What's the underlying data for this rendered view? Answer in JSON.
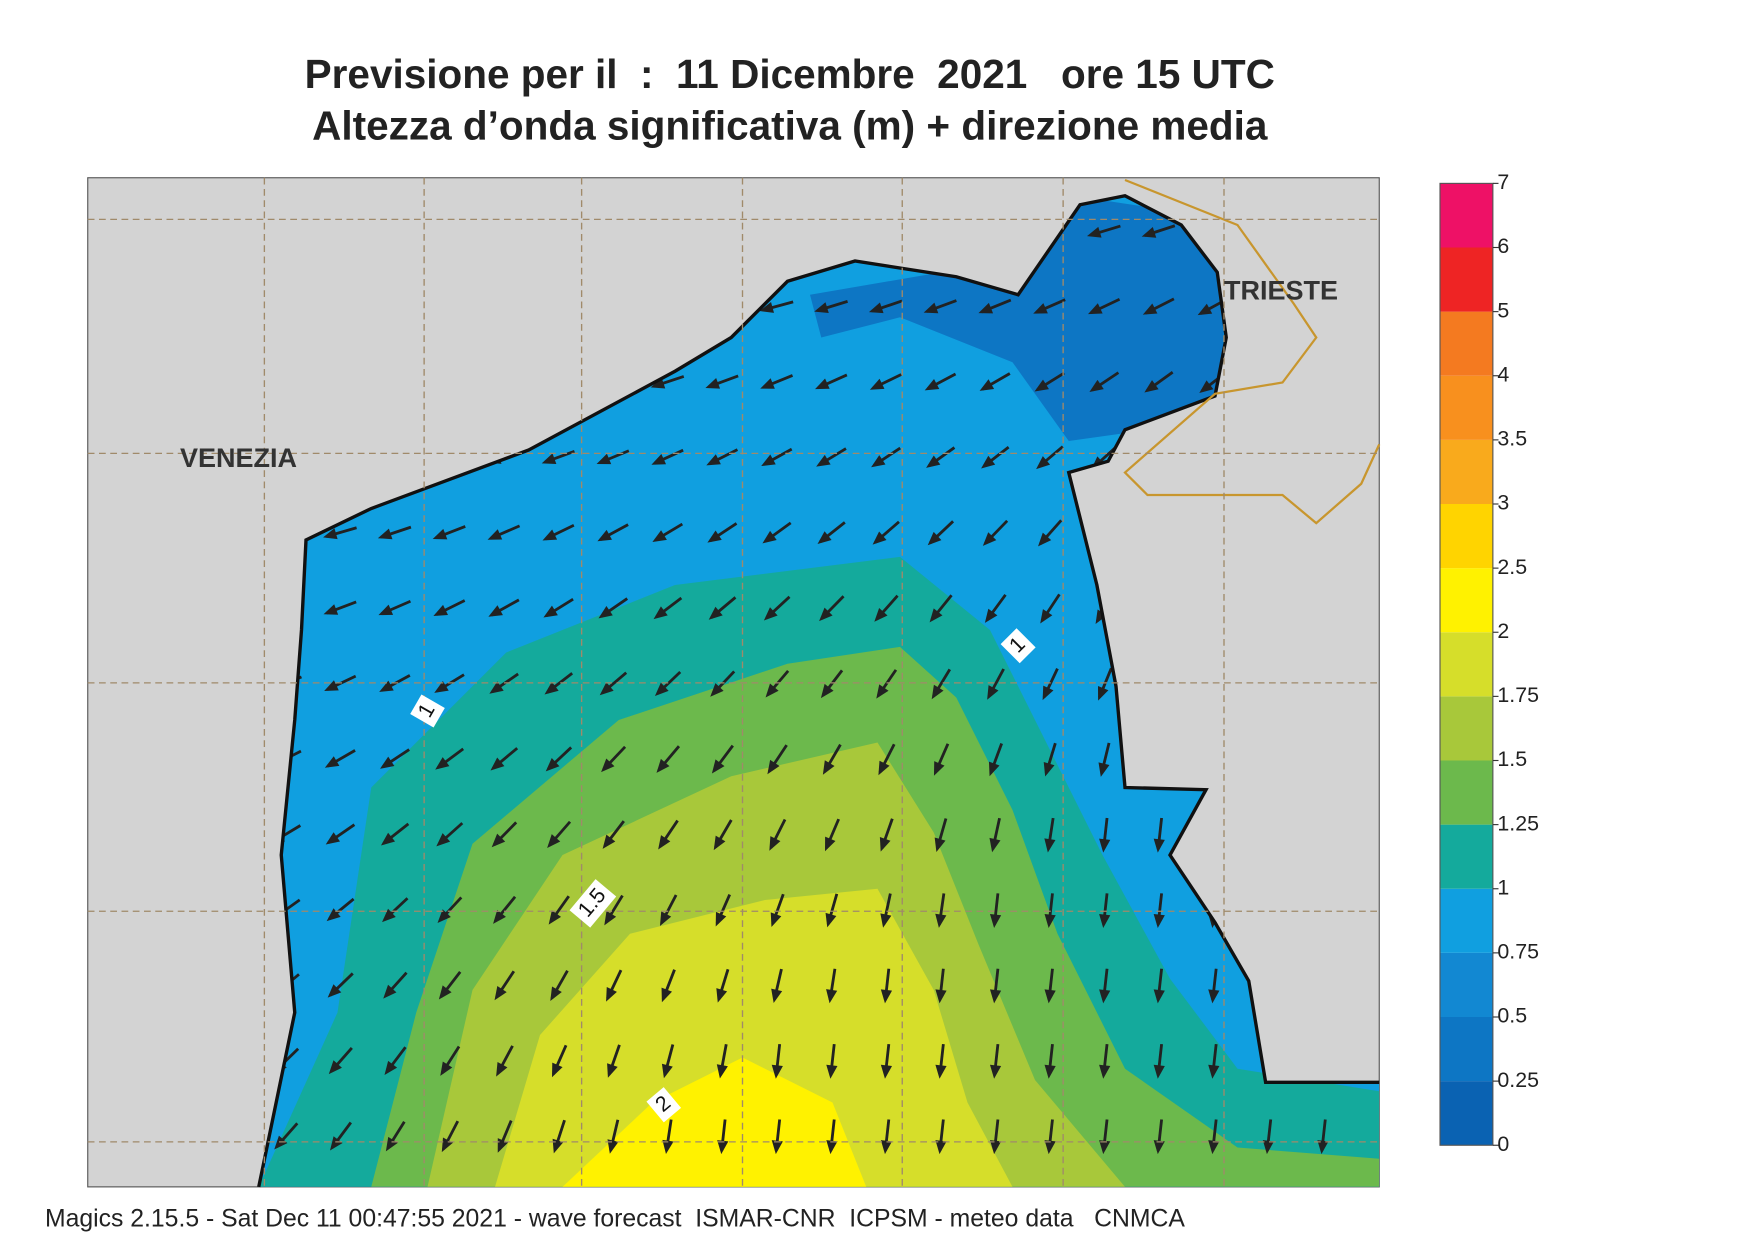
{
  "header": {
    "title": "Previsione per il  :  11 Dicembre  2021   ore 15 UTC",
    "subtitle": "Altezza d’onda significativa (m) + direzione media"
  },
  "map": {
    "labels": [
      "VENEZIA",
      "TRIESTE"
    ],
    "contour_labels": [
      "1",
      "1",
      "1.5",
      "2"
    ]
  },
  "legend": {
    "levels": [
      0,
      0.25,
      0.5,
      0.75,
      1,
      1.25,
      1.5,
      1.75,
      2,
      2.5,
      3,
      3.5,
      4,
      5,
      6,
      7
    ],
    "colors": [
      "#0a62b2",
      "#0d76c4",
      "#1288d2",
      "#109fe0",
      "#14aa9c",
      "#6cb94c",
      "#a8c83a",
      "#d6de2a",
      "#fff200",
      "#ffd400",
      "#f9aa1c",
      "#f8901e",
      "#f47a20",
      "#ee2424",
      "#ee1166"
    ]
  },
  "footer": "Magics 2.15.5 - Sat Dec 11 00:47:55 2021 - wave forecast  ISMAR-CNR  ICPSM - meteo data   CNMCA"
}
